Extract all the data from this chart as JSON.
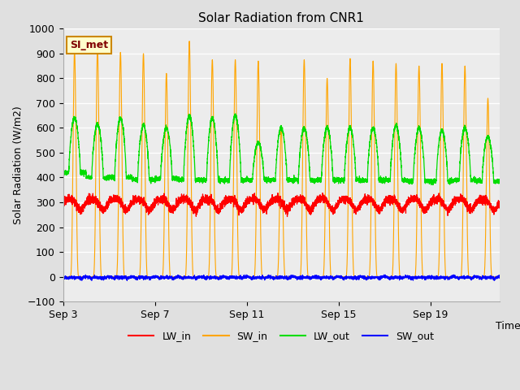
{
  "title": "Solar Radiation from CNR1",
  "xlabel": "Time",
  "ylabel": "Solar Radiation (W/m2)",
  "ylim": [
    -100,
    1000
  ],
  "yticks": [
    -100,
    0,
    100,
    200,
    300,
    400,
    500,
    600,
    700,
    800,
    900,
    1000
  ],
  "x_tick_labels": [
    "Sep 3",
    "Sep 7",
    "Sep 11",
    "Sep 15",
    "Sep 19"
  ],
  "x_tick_positions": [
    0,
    4,
    8,
    12,
    16
  ],
  "colors": {
    "LW_in": "#ff0000",
    "SW_in": "#ffa500",
    "LW_out": "#00dd00",
    "SW_out": "#0000ff"
  },
  "bg_color": "#e0e0e0",
  "plot_bg_color": "#ececec",
  "annotation_box": {
    "text": "SI_met",
    "bg": "#ffffcc",
    "border": "#cc8800",
    "text_color": "#800000"
  },
  "total_days": 19,
  "sw_in_peaks": [
    910,
    920,
    905,
    900,
    820,
    950,
    875,
    875,
    870,
    600,
    875,
    800,
    880,
    870,
    860,
    850,
    860,
    850,
    720
  ],
  "lw_out_peaks": [
    640,
    615,
    640,
    610,
    600,
    650,
    640,
    650,
    540,
    600,
    600,
    600,
    600,
    600,
    610,
    600,
    590,
    600,
    565
  ],
  "lw_out_night": [
    420,
    400,
    400,
    390,
    395,
    390,
    390,
    390,
    390,
    390,
    390,
    390,
    390,
    390,
    390,
    385,
    385,
    390,
    385
  ],
  "figsize": [
    6.4,
    4.8
  ],
  "dpi": 100
}
